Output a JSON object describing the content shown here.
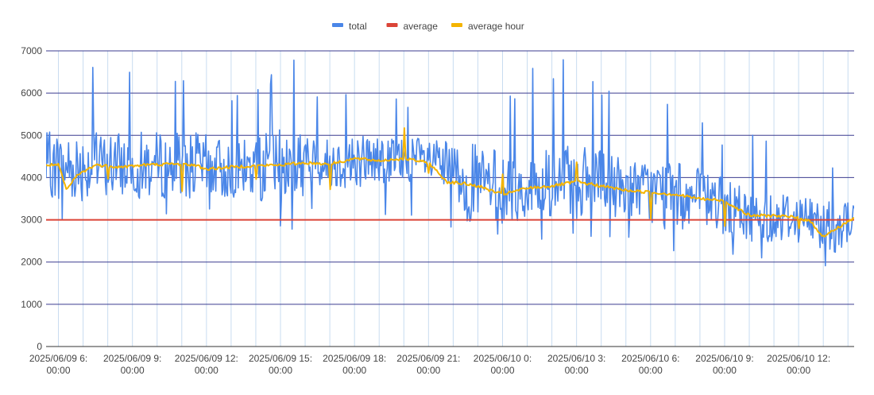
{
  "chart_data": {
    "type": "line",
    "title": "",
    "xlabel": "",
    "ylabel": "",
    "ylim": [
      0,
      7000
    ],
    "yticks": [
      0,
      1000,
      2000,
      3000,
      4000,
      5000,
      6000,
      7000
    ],
    "xlim": [
      "2025/06/09 05:30",
      "2025/06/10 14:15"
    ],
    "x_tick_labels": [
      {
        "x": "2025/06/09 06:00",
        "line1": "2025/06/09 6:",
        "line2": "00:00"
      },
      {
        "x": "2025/06/09 09:00",
        "line1": "2025/06/09 9:",
        "line2": "00:00"
      },
      {
        "x": "2025/06/09 12:00",
        "line1": "2025/06/09 12:",
        "line2": "00:00"
      },
      {
        "x": "2025/06/09 15:00",
        "line1": "2025/06/09 15:",
        "line2": "00:00"
      },
      {
        "x": "2025/06/09 18:00",
        "line1": "2025/06/09 18:",
        "line2": "00:00"
      },
      {
        "x": "2025/06/09 21:00",
        "line1": "2025/06/09 21:",
        "line2": "00:00"
      },
      {
        "x": "2025/06/10 00:00",
        "line1": "2025/06/10 0:",
        "line2": "00:00"
      },
      {
        "x": "2025/06/10 03:00",
        "line1": "2025/06/10 3:",
        "line2": "00:00"
      },
      {
        "x": "2025/06/10 06:00",
        "line1": "2025/06/10 6:",
        "line2": "00:00"
      },
      {
        "x": "2025/06/10 09:00",
        "line1": "2025/06/10 9:",
        "line2": "00:00"
      },
      {
        "x": "2025/06/10 12:00",
        "line1": "2025/06/10 12:",
        "line2": "00:00"
      }
    ],
    "grid": true,
    "legend": "top",
    "series": [
      {
        "name": "total",
        "color": "#4a86e8",
        "style": "noisy line",
        "x": [
          "2025/06/09 05:30",
          "2025/06/09 06:30",
          "2025/06/09 07:30",
          "2025/06/09 08:30",
          "2025/06/09 09:30",
          "2025/06/09 10:30",
          "2025/06/09 11:30",
          "2025/06/09 12:30",
          "2025/06/09 13:30",
          "2025/06/09 14:30",
          "2025/06/09 15:30",
          "2025/06/09 16:30",
          "2025/06/09 17:30",
          "2025/06/09 18:30",
          "2025/06/09 19:30",
          "2025/06/09 20:30",
          "2025/06/09 21:30",
          "2025/06/09 22:30",
          "2025/06/09 23:30",
          "2025/06/10 00:30",
          "2025/06/10 01:30",
          "2025/06/10 02:30",
          "2025/06/10 03:30",
          "2025/06/10 04:30",
          "2025/06/10 05:30",
          "2025/06/10 06:30",
          "2025/06/10 07:30",
          "2025/06/10 08:30",
          "2025/06/10 09:30",
          "2025/06/10 10:30",
          "2025/06/10 11:30",
          "2025/06/10 12:30",
          "2025/06/10 13:30",
          "2025/06/10 14:15"
        ],
        "values": [
          4300,
          4250,
          4300,
          4300,
          4300,
          4280,
          4300,
          4200,
          4200,
          4250,
          4300,
          4350,
          4350,
          4450,
          4400,
          4450,
          4300,
          3900,
          3800,
          3650,
          3800,
          3850,
          3900,
          3800,
          3750,
          3600,
          3550,
          3450,
          3150,
          3050,
          3100,
          3000,
          2800,
          3050
        ],
        "range_low": [
          2500,
          2800,
          3000,
          3000,
          3000,
          2900,
          2800,
          2900,
          2600,
          2600,
          2500,
          3200,
          3100,
          3100,
          3100,
          3000,
          2800,
          2300,
          2400,
          2500,
          2400,
          2500,
          2500,
          2300,
          2300,
          2000,
          2000,
          1900,
          1800,
          1900,
          1900,
          1800,
          1700,
          2300
        ],
        "range_high": [
          6400,
          7000,
          7000,
          6800,
          7000,
          6800,
          6800,
          6600,
          6100,
          6800,
          7000,
          6000,
          6200,
          6300,
          6000,
          5600,
          5600,
          7000,
          7000,
          6100,
          7000,
          7000,
          6500,
          6100,
          5500,
          6400,
          5800,
          5200,
          5300,
          4900,
          4900,
          4800,
          4600,
          4500
        ]
      },
      {
        "name": "average",
        "color": "#db4437",
        "x": [
          "2025/06/09 05:30",
          "2025/06/10 14:15"
        ],
        "values": [
          3000,
          3000
        ]
      },
      {
        "name": "average hour",
        "color": "#f4b400",
        "x": [
          "2025/06/09 05:30",
          "2025/06/09 06:00",
          "2025/06/09 06:20",
          "2025/06/09 06:45",
          "2025/06/09 07:30",
          "2025/06/09 08:30",
          "2025/06/09 09:30",
          "2025/06/09 10:30",
          "2025/06/09 11:30",
          "2025/06/09 12:00",
          "2025/06/09 13:00",
          "2025/06/09 14:00",
          "2025/06/09 15:00",
          "2025/06/09 16:00",
          "2025/06/09 17:00",
          "2025/06/09 18:00",
          "2025/06/09 19:00",
          "2025/06/09 20:00",
          "2025/06/09 21:00",
          "2025/06/09 21:45",
          "2025/06/09 22:30",
          "2025/06/09 23:00",
          "2025/06/10 00:00",
          "2025/06/10 01:00",
          "2025/06/10 02:00",
          "2025/06/10 03:00",
          "2025/06/10 04:00",
          "2025/06/10 05:00",
          "2025/06/10 06:00",
          "2025/06/10 07:00",
          "2025/06/10 08:00",
          "2025/06/10 09:00",
          "2025/06/10 10:00",
          "2025/06/10 11:00",
          "2025/06/10 12:00",
          "2025/06/10 12:30",
          "2025/06/10 13:00",
          "2025/06/10 14:15"
        ],
        "values": [
          4300,
          4300,
          3700,
          4050,
          4300,
          4250,
          4300,
          4320,
          4300,
          4200,
          4250,
          4280,
          4300,
          4350,
          4320,
          4450,
          4400,
          4450,
          4350,
          3900,
          3850,
          3800,
          3600,
          3750,
          3800,
          3900,
          3800,
          3700,
          3650,
          3600,
          3500,
          3450,
          3100,
          3100,
          3050,
          2950,
          2600,
          3050
        ]
      }
    ]
  }
}
